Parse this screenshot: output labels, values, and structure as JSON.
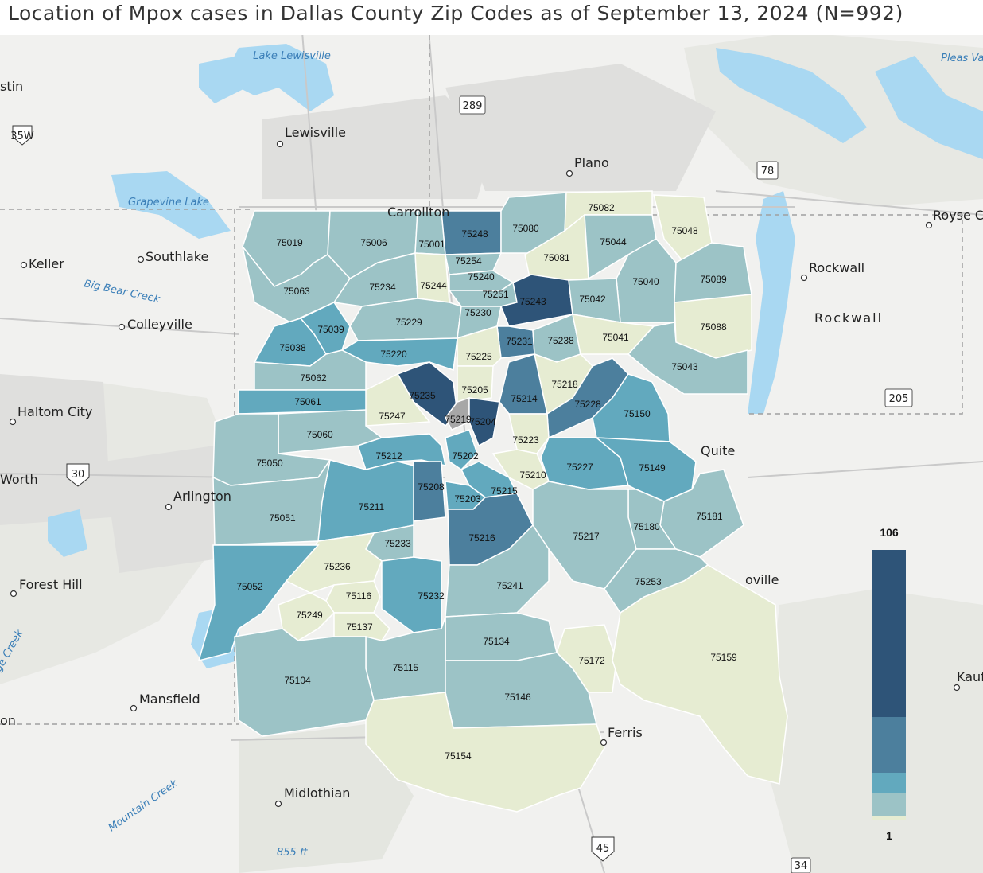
{
  "title": "Location of Mpox cases in Dallas County Zip Codes as of September 13, 2024 (N=992)",
  "legend": {
    "max_label": "106",
    "min_label": "1",
    "colors": [
      "#2e5478",
      "#4c7f9d",
      "#62a9be",
      "#9cc3c6",
      "#e6ecd2"
    ]
  },
  "colors": {
    "water": "#a9d8f2",
    "land": "#f1f1ef",
    "county_out": "#a7a7a7"
  },
  "zips": [
    {
      "zip": "75019",
      "class": 3
    },
    {
      "zip": "75006",
      "class": 3
    },
    {
      "zip": "75001",
      "class": 3
    },
    {
      "zip": "75248",
      "class": 1
    },
    {
      "zip": "75080",
      "class": 3
    },
    {
      "zip": "75082",
      "class": 4
    },
    {
      "zip": "75048",
      "class": 4
    },
    {
      "zip": "75063",
      "class": 3
    },
    {
      "zip": "75234",
      "class": 3
    },
    {
      "zip": "75244",
      "class": 4
    },
    {
      "zip": "75254",
      "class": 3
    },
    {
      "zip": "75240",
      "class": 3
    },
    {
      "zip": "75081",
      "class": 4
    },
    {
      "zip": "75044",
      "class": 3
    },
    {
      "zip": "75040",
      "class": 3
    },
    {
      "zip": "75089",
      "class": 3
    },
    {
      "zip": "75251",
      "class": 3
    },
    {
      "zip": "75243",
      "class": 0
    },
    {
      "zip": "75042",
      "class": 3
    },
    {
      "zip": "75088",
      "class": 4
    },
    {
      "zip": "75229",
      "class": 3
    },
    {
      "zip": "75230",
      "class": 3
    },
    {
      "zip": "75039",
      "class": 2
    },
    {
      "zip": "75038",
      "class": 2
    },
    {
      "zip": "75231",
      "class": 1
    },
    {
      "zip": "75238",
      "class": 3
    },
    {
      "zip": "75041",
      "class": 4
    },
    {
      "zip": "75220",
      "class": 2
    },
    {
      "zip": "75225",
      "class": 4
    },
    {
      "zip": "75043",
      "class": 3
    },
    {
      "zip": "75062",
      "class": 3
    },
    {
      "zip": "75218",
      "class": 4
    },
    {
      "zip": "75205",
      "class": 4
    },
    {
      "zip": "75214",
      "class": 1
    },
    {
      "zip": "75235",
      "class": 0
    },
    {
      "zip": "75061",
      "class": 2
    },
    {
      "zip": "75228",
      "class": 1
    },
    {
      "zip": "75150",
      "class": 2
    },
    {
      "zip": "75247",
      "class": 4
    },
    {
      "zip": "75219",
      "class": 5
    },
    {
      "zip": "75060",
      "class": 3
    },
    {
      "zip": "75204",
      "class": 0
    },
    {
      "zip": "75223",
      "class": 4
    },
    {
      "zip": "75050",
      "class": 3
    },
    {
      "zip": "75212",
      "class": 2
    },
    {
      "zip": "75202",
      "class": 2
    },
    {
      "zip": "75227",
      "class": 2
    },
    {
      "zip": "75149",
      "class": 2
    },
    {
      "zip": "75210",
      "class": 4
    },
    {
      "zip": "75208",
      "class": 1
    },
    {
      "zip": "75215",
      "class": 2
    },
    {
      "zip": "75211",
      "class": 2
    },
    {
      "zip": "75203",
      "class": 2
    },
    {
      "zip": "75181",
      "class": 3
    },
    {
      "zip": "75051",
      "class": 3
    },
    {
      "zip": "75180",
      "class": 3
    },
    {
      "zip": "75233",
      "class": 3
    },
    {
      "zip": "75216",
      "class": 1
    },
    {
      "zip": "75217",
      "class": 3
    },
    {
      "zip": "75236",
      "class": 4
    },
    {
      "zip": "75052",
      "class": 2
    },
    {
      "zip": "75253",
      "class": 3
    },
    {
      "zip": "75116",
      "class": 4
    },
    {
      "zip": "75241",
      "class": 3
    },
    {
      "zip": "75232",
      "class": 2
    },
    {
      "zip": "75249",
      "class": 4
    },
    {
      "zip": "75137",
      "class": 4
    },
    {
      "zip": "75134",
      "class": 3
    },
    {
      "zip": "75172",
      "class": 4
    },
    {
      "zip": "75159",
      "class": 4
    },
    {
      "zip": "75115",
      "class": 3
    },
    {
      "zip": "75104",
      "class": 3
    },
    {
      "zip": "75146",
      "class": 3
    },
    {
      "zip": "75154",
      "class": 4
    }
  ],
  "places": [
    "Lake Lewisville",
    "Lewisville",
    "289",
    "Plano",
    "78",
    "Pleas Vall",
    "stin",
    "35W",
    "Grapevine Lake",
    "Keller",
    "Southlake",
    "Big Bear Creek",
    "Colleyville",
    "Carrollton",
    "Royse C",
    "Rockwall",
    "Rockwall",
    "Haltom City",
    "205",
    "Quite",
    "Worth",
    "30",
    "Arlington",
    "Forest Hill",
    "oville",
    "ge Creek",
    "Mansfield",
    "on",
    "Ferris",
    "Kauf",
    "Midlothian",
    "Mountain Creek",
    "855 ft",
    "45",
    "34"
  ]
}
